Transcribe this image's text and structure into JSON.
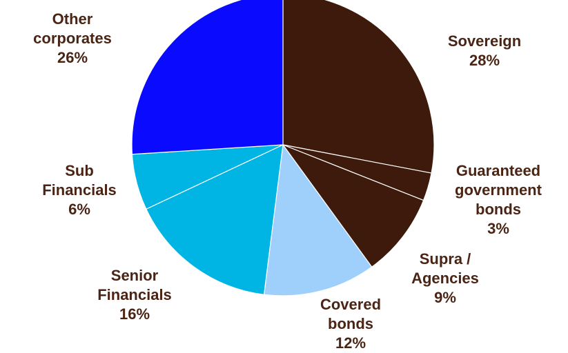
{
  "chart_data": {
    "type": "pie",
    "title": "",
    "slices": [
      {
        "lines": [
          "Sovereign"
        ],
        "pct_label": "28%",
        "value": 28,
        "color": "#3d1a0c"
      },
      {
        "lines": [
          "Guaranteed",
          "government",
          "bonds"
        ],
        "pct_label": "3%",
        "value": 3,
        "color": "#3d1a0c"
      },
      {
        "lines": [
          "Supra /",
          "Agencies"
        ],
        "pct_label": "9%",
        "value": 9,
        "color": "#3d1a0c"
      },
      {
        "lines": [
          "Covered",
          "bonds"
        ],
        "pct_label": "12%",
        "value": 12,
        "color": "#9fd0fb"
      },
      {
        "lines": [
          "Senior",
          "Financials"
        ],
        "pct_label": "16%",
        "value": 16,
        "color": "#00b4e4"
      },
      {
        "lines": [
          "Sub",
          "Financials"
        ],
        "pct_label": "6%",
        "value": 6,
        "color": "#00b4e4"
      },
      {
        "lines": [
          "Other",
          "corporates"
        ],
        "pct_label": "26%",
        "value": 26,
        "color": "#0a0aff"
      }
    ],
    "label_color": "#4a2414",
    "separator_color": "#ffffff",
    "start_angle": "12 o'clock",
    "direction": "clockwise",
    "legend": "none"
  }
}
